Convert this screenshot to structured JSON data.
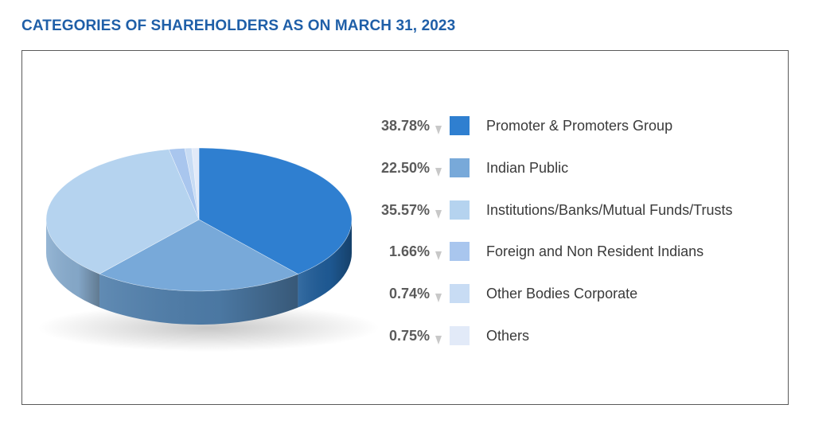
{
  "header": {
    "title": "CATEGORIES OF SHAREHOLDERS AS ON MARCH 31, 2023"
  },
  "chart_data": {
    "type": "pie",
    "title": "CATEGORIES OF SHAREHOLDERS AS ON MARCH 31, 2023",
    "legend_position": "right",
    "slices": [
      {
        "label": "Promoter & Promoters Group",
        "value": 38.78,
        "value_label": "38.78%",
        "color": "#2f7fd0",
        "side_color": "#1f5c98"
      },
      {
        "label": "Indian Public",
        "value": 22.5,
        "value_label": "22.50%",
        "color": "#78a9d9",
        "side_color": "#4f7eab"
      },
      {
        "label": "Institutions/Banks/Mutual Funds/Trusts",
        "value": 35.57,
        "value_label": "35.57%",
        "color": "#b5d3ef",
        "side_color": "#8aaed0"
      },
      {
        "label": "Foreign and Non Resident Indians",
        "value": 1.66,
        "value_label": "1.66%",
        "color": "#a9c6ee",
        "side_color": "#86a2c8"
      },
      {
        "label": "Other Bodies Corporate",
        "value": 0.74,
        "value_label": "0.74%",
        "color": "#c8dcf4",
        "side_color": "#a3b8d4"
      },
      {
        "label": "Others",
        "value": 0.75,
        "value_label": "0.75%",
        "color": "#e2eaf8",
        "side_color": "#bac6da"
      }
    ]
  }
}
